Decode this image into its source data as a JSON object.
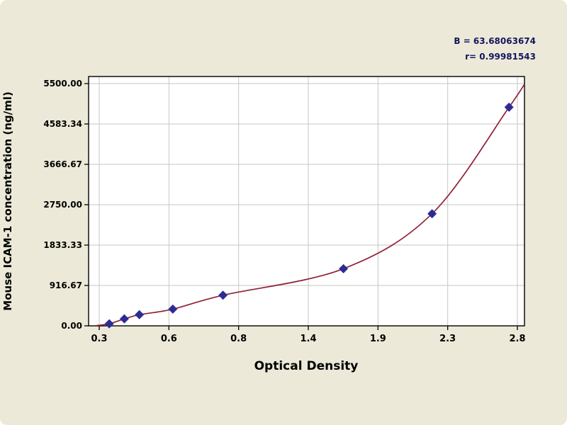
{
  "page": {
    "background": "#ece9d8"
  },
  "chart_data": {
    "type": "scatter",
    "title": "",
    "xlabel": "Optical Density",
    "ylabel": "Mouse ICAM-1 concentration (ng/ml)",
    "x_tick_labels": [
      "0.3",
      "0.6",
      "0.8",
      "1.4",
      "1.9",
      "2.3",
      "2.8"
    ],
    "y_tick_labels": [
      "0.00",
      "916.67",
      "1833.33",
      "2750.00",
      "3666.67",
      "4583.34",
      "5500.00"
    ],
    "xlim": [
      0.05,
      2.95
    ],
    "ylim": [
      0,
      5500
    ],
    "grid": true,
    "legend": "none",
    "series": [
      {
        "name": "standard-points",
        "type": "scatter",
        "marker": "diamond",
        "points": [
          [
            0.36,
            47
          ],
          [
            0.45,
            158
          ],
          [
            0.54,
            253
          ],
          [
            0.74,
            379
          ],
          [
            1.04,
            695
          ],
          [
            1.76,
            1296
          ],
          [
            2.29,
            2545
          ],
          [
            2.75,
            4963
          ]
        ]
      },
      {
        "name": "fitted-curve",
        "type": "line",
        "points": [
          [
            0.28,
            5
          ],
          [
            0.36,
            47
          ],
          [
            0.45,
            158
          ],
          [
            0.54,
            253
          ],
          [
            0.74,
            379
          ],
          [
            1.04,
            695
          ],
          [
            1.76,
            1296
          ],
          [
            2.29,
            2545
          ],
          [
            2.75,
            4963
          ],
          [
            2.86,
            5600
          ]
        ]
      }
    ],
    "annotations": [
      "B = 63.68063674",
      "r= 0.99981543"
    ],
    "colors": {
      "page_bg": "#ece9d8",
      "plot_bg": "#ffffff",
      "frame": "#000000",
      "grid": "#c6c6c6",
      "curve": "#8e2236",
      "marker": "#2b2b96",
      "tick_text": "#000000",
      "stats_text": "#15155f"
    }
  }
}
